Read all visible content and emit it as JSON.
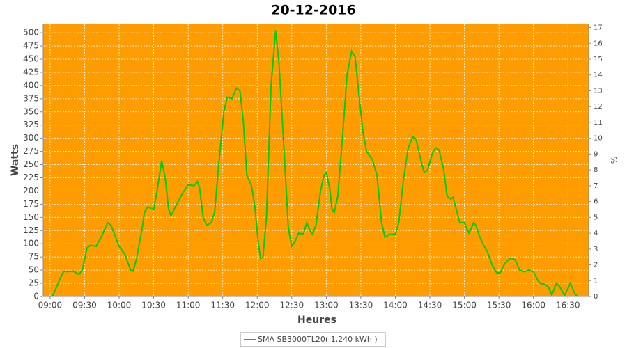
{
  "chart_data": {
    "type": "line",
    "title": "20-12-2016",
    "x_label": "Heures",
    "y_label": "Watts",
    "y2_label": "%",
    "background": "#ff9c00",
    "grid": true,
    "x": [
      "09:02",
      "09:05",
      "09:10",
      "09:12",
      "09:15",
      "09:20",
      "09:25",
      "09:28",
      "09:32",
      "09:35",
      "09:40",
      "09:45",
      "09:50",
      "09:53",
      "09:57",
      "10:00",
      "10:05",
      "10:10",
      "10:12",
      "10:15",
      "10:20",
      "10:22",
      "10:25",
      "10:30",
      "10:33",
      "10:37",
      "10:40",
      "10:43",
      "10:45",
      "10:50",
      "10:55",
      "11:00",
      "11:05",
      "11:08",
      "11:10",
      "11:13",
      "11:16",
      "11:20",
      "11:23",
      "11:27",
      "11:31",
      "11:34",
      "11:38",
      "11:42",
      "11:45",
      "11:48",
      "11:51",
      "11:55",
      "11:58",
      "12:01",
      "12:03",
      "12:05",
      "12:08",
      "12:12",
      "12:16",
      "12:19",
      "12:23",
      "12:27",
      "12:30",
      "12:33",
      "12:36",
      "12:40",
      "12:43",
      "12:46",
      "12:48",
      "12:51",
      "12:55",
      "12:58",
      "13:00",
      "13:03",
      "13:05",
      "13:07",
      "13:10",
      "13:14",
      "13:18",
      "13:22",
      "13:25",
      "13:28",
      "13:32",
      "13:35",
      "13:40",
      "13:44",
      "13:48",
      "13:51",
      "13:55",
      "14:00",
      "14:03",
      "14:07",
      "14:11",
      "14:15",
      "14:18",
      "14:22",
      "14:25",
      "14:28",
      "14:32",
      "14:35",
      "14:38",
      "14:42",
      "14:45",
      "14:48",
      "14:50",
      "14:53",
      "14:56",
      "15:00",
      "15:04",
      "15:08",
      "15:10",
      "15:13",
      "15:16",
      "15:20",
      "15:24",
      "15:28",
      "15:31",
      "15:35",
      "15:40",
      "15:44",
      "15:48",
      "15:52",
      "15:56",
      "16:00",
      "16:04",
      "16:06",
      "16:10",
      "16:13",
      "16:16",
      "16:20",
      "16:23",
      "16:27",
      "16:32",
      "16:36",
      "16:38"
    ],
    "series": [
      {
        "name": "SMA SB3000TL20( 1,240 kWh )",
        "color": "#00cc00",
        "values": [
          0,
          15,
          40,
          48,
          47,
          48,
          42,
          50,
          92,
          97,
          95,
          115,
          140,
          135,
          112,
          95,
          80,
          50,
          48,
          70,
          130,
          160,
          170,
          165,
          200,
          258,
          225,
          165,
          153,
          175,
          195,
          212,
          210,
          218,
          205,
          150,
          135,
          140,
          160,
          260,
          350,
          378,
          375,
          395,
          390,
          330,
          230,
          210,
          170,
          100,
          72,
          75,
          150,
          400,
          505,
          440,
          290,
          130,
          95,
          105,
          120,
          118,
          140,
          125,
          118,
          135,
          200,
          230,
          235,
          205,
          165,
          160,
          190,
          300,
          420,
          465,
          455,
          390,
          310,
          275,
          260,
          230,
          140,
          112,
          118,
          118,
          140,
          220,
          280,
          303,
          298,
          260,
          235,
          240,
          270,
          282,
          278,
          240,
          190,
          185,
          188,
          165,
          140,
          140,
          120,
          140,
          135,
          115,
          100,
          85,
          60,
          45,
          45,
          62,
          73,
          70,
          50,
          47,
          50,
          47,
          30,
          25,
          23,
          18,
          3,
          25,
          18,
          2,
          25,
          5,
          0
        ]
      }
    ],
    "xlim": [
      "08:54",
      "16:48"
    ],
    "xticks": [
      "09:00",
      "09:30",
      "10:00",
      "10:30",
      "11:00",
      "11:30",
      "12:00",
      "12:30",
      "13:00",
      "13:30",
      "14:00",
      "14:30",
      "15:00",
      "15:30",
      "16:00",
      "16:30"
    ],
    "ylim": [
      0,
      516
    ],
    "yticks": [
      0,
      25,
      50,
      75,
      100,
      125,
      150,
      175,
      200,
      225,
      250,
      275,
      300,
      325,
      350,
      375,
      400,
      425,
      450,
      475,
      500
    ],
    "y2lim": [
      0,
      17.2
    ],
    "y2ticks": [
      0,
      1,
      2,
      3,
      4,
      5,
      6,
      7,
      8,
      9,
      10,
      11,
      12,
      13,
      14,
      15,
      16,
      17
    ]
  }
}
